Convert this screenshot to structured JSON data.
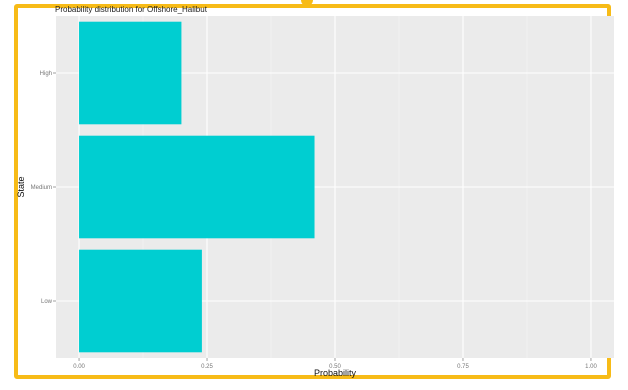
{
  "chart_data": {
    "type": "bar",
    "orientation": "horizontal",
    "title": "Probability distribution for Offshore_Halibut",
    "xlabel": "Probability",
    "ylabel": "State",
    "categories": [
      "Low",
      "Medium",
      "High"
    ],
    "values": [
      0.24,
      0.46,
      0.2
    ],
    "xlim": [
      0,
      1
    ],
    "xticks": [
      0,
      0.25,
      0.5,
      0.75,
      1
    ],
    "xtick_labels": [
      "0.00",
      "0.25",
      "0.50",
      "0.75",
      "1.00"
    ],
    "bar_color": "#00ced1",
    "panel_color": "#ebebeb",
    "grid": true,
    "legend": "none"
  },
  "frame_color": "#f7bb17"
}
